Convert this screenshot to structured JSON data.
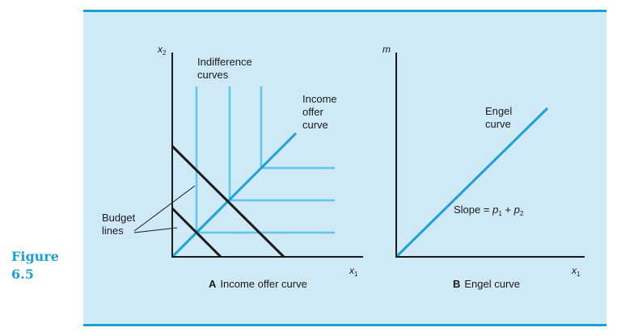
{
  "figure": {
    "label_word": "Figure",
    "label_number": "6.5"
  },
  "panel_a": {
    "caption_letter": "A",
    "caption_text": "Income offer curve",
    "y_axis_var": "x",
    "y_axis_sub": "2",
    "x_axis_var": "x",
    "x_axis_sub": "1",
    "indifference_label_1": "Indifference",
    "indifference_label_2": "curves",
    "offer_label_1": "Income",
    "offer_label_2": "offer",
    "offer_label_3": "curve",
    "budget_label_1": "Budget",
    "budget_label_2": "lines"
  },
  "panel_b": {
    "caption_letter": "B",
    "caption_text": "Engel curve",
    "y_axis_var": "m",
    "x_axis_var": "x",
    "x_axis_sub": "1",
    "engel_label_1": "Engel",
    "engel_label_2": "curve",
    "slope_prefix": "Slope = ",
    "slope_p1": "p",
    "slope_p1_sub": "1",
    "slope_plus": " + ",
    "slope_p2": "p",
    "slope_p2_sub": "2"
  },
  "colors": {
    "accent": "#1ba0d8",
    "indifference": "#5cc8ee",
    "panel_bg": "#cfe9f6",
    "axis": "#1a1a1a"
  }
}
